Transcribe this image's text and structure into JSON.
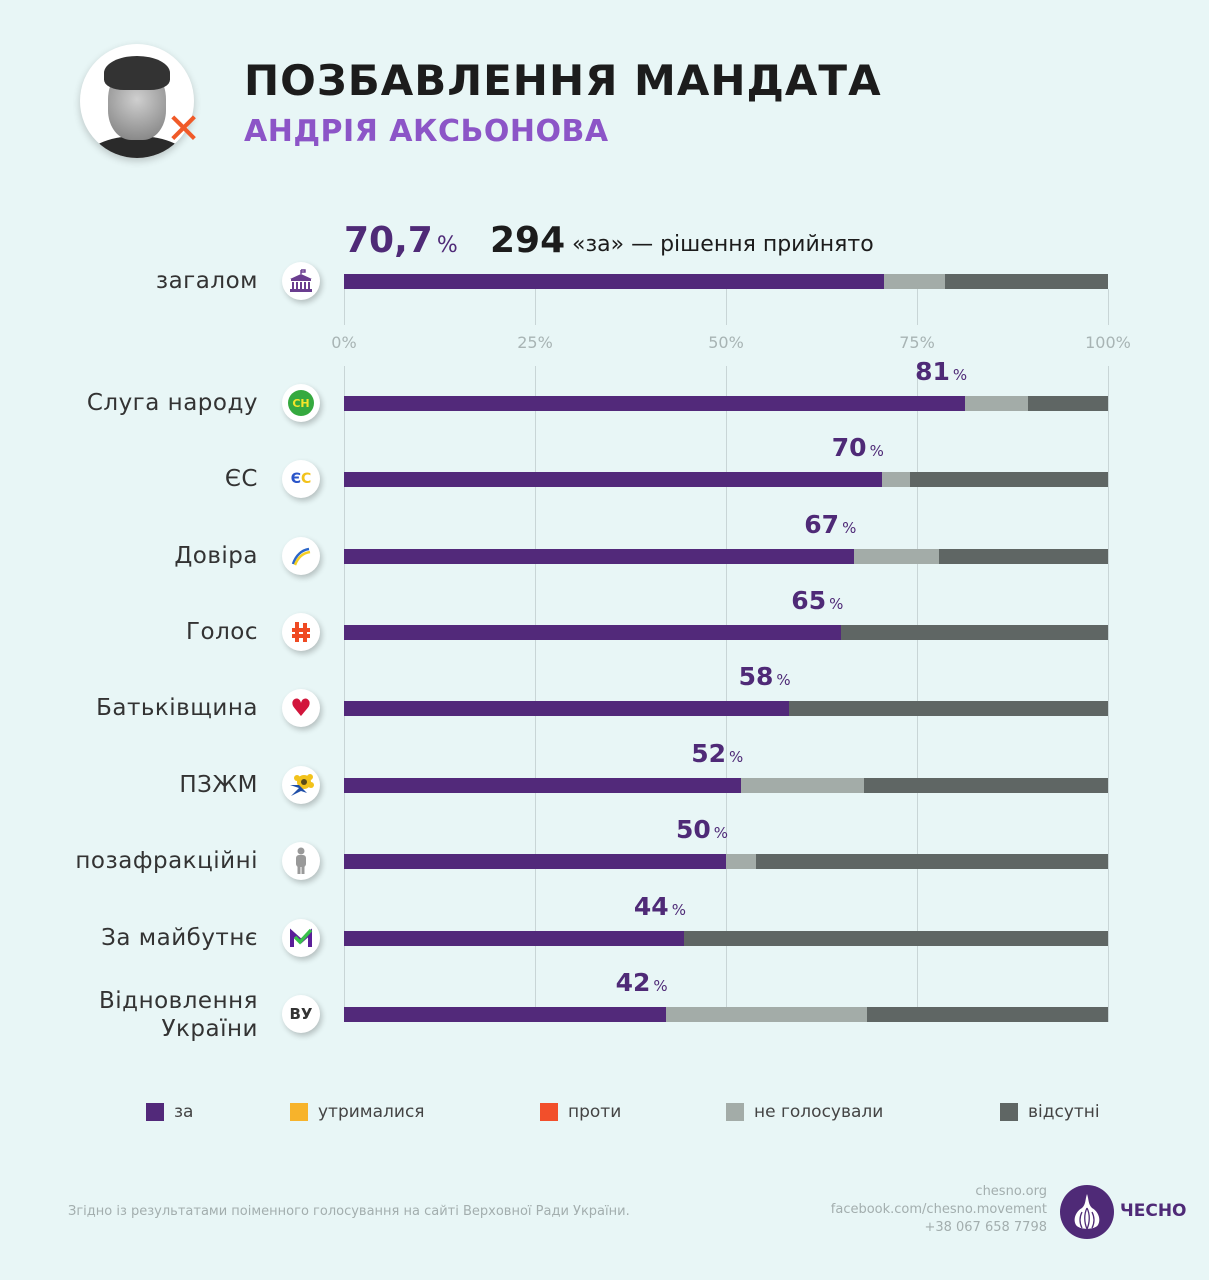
{
  "header": {
    "title": "ПОЗБАВЛЕННЯ МАНДАТА",
    "subtitle": "АНДРІЯ АКСЬОНОВА",
    "portrait_mark": "✕"
  },
  "summary": {
    "percent": "70,7",
    "percent_unit": "%",
    "count": "294",
    "text": "«за» — рішення прийнято"
  },
  "colors": {
    "za": "#52297a",
    "utrymalysia": "#f7b32b",
    "proty": "#f24f2b",
    "ne_holosuvaly": "#a3aca8",
    "vidsutni": "#5f6664"
  },
  "chart_data": {
    "type": "bar",
    "orientation": "horizontal",
    "stacked": true,
    "title": "ПОЗБАВЛЕННЯ МАНДАТА АНДРІЯ АКСЬОНОВА",
    "xlabel": "",
    "ylabel": "",
    "xlim": [
      0,
      100
    ],
    "x_ticks": [
      "0%",
      "25%",
      "50%",
      "75%",
      "100%"
    ],
    "grid": true,
    "legend_position": "bottom",
    "categories": [
      "загалом",
      "Слуга народу",
      "ЄС",
      "Довіра",
      "Голос",
      "Батьківщина",
      "ПЗЖМ",
      "позафракційні",
      "За майбутнє",
      "Відновлення України"
    ],
    "value_labels": [
      "70,7",
      "81",
      "70",
      "67",
      "65",
      "58",
      "52",
      "50",
      "44",
      "42"
    ],
    "series": [
      {
        "name": "за",
        "key": "za",
        "values": [
          70.7,
          81.3,
          70.4,
          66.8,
          65.1,
          58.2,
          52.0,
          50.0,
          44.5,
          42.1
        ]
      },
      {
        "name": "утрималися",
        "key": "utrymalysia",
        "values": [
          0,
          0,
          0,
          0,
          0,
          0,
          0,
          0,
          0,
          0
        ]
      },
      {
        "name": "проти",
        "key": "proty",
        "values": [
          0,
          0,
          0,
          0,
          0,
          0,
          0,
          0,
          0,
          0
        ]
      },
      {
        "name": "не голосували",
        "key": "ne_holosuvaly",
        "values": [
          8.0,
          8.2,
          3.7,
          11.1,
          0,
          0,
          16.1,
          3.9,
          0,
          26.4
        ]
      },
      {
        "name": "відсутні",
        "key": "vidsutni",
        "values": [
          21.3,
          10.5,
          25.9,
          22.1,
          34.9,
          41.8,
          31.9,
          46.1,
          55.5,
          31.5
        ]
      }
    ]
  },
  "rows": [
    {
      "label": "загалом",
      "icon": "parliament-icon"
    },
    {
      "label": "Слуга народу",
      "icon": "sluha-narodu-logo-icon",
      "icon_text": "СН"
    },
    {
      "label": "ЄС",
      "icon": "yes-logo-icon",
      "icon_text": "ЄС"
    },
    {
      "label": "Довіра",
      "icon": "dovira-logo-icon"
    },
    {
      "label": "Голос",
      "icon": "holos-logo-icon"
    },
    {
      "label": "Батьківщина",
      "icon": "heart-icon",
      "icon_text": "♥"
    },
    {
      "label": "ПЗЖМ",
      "icon": "pzzhm-logo-icon"
    },
    {
      "label": "позафракційні",
      "icon": "person-icon"
    },
    {
      "label": "За майбутнє",
      "icon": "za-maibutnie-logo-icon",
      "icon_text": "M"
    },
    {
      "label_line1": "Відновлення",
      "label_line2": "України",
      "icon": "vu-logo-icon",
      "icon_text": "ВУ"
    }
  ],
  "legend": [
    {
      "label": "за",
      "key": "za"
    },
    {
      "label": "утрималися",
      "key": "utrymalysia"
    },
    {
      "label": "проти",
      "key": "proty"
    },
    {
      "label": "не голосували",
      "key": "ne_holosuvaly"
    },
    {
      "label": "відсутні",
      "key": "vidsutni"
    }
  ],
  "footer": {
    "source": "Згідно із результатами поіменного голосування на сайті Верховної Ради України.",
    "website": "chesno.org",
    "facebook": "facebook.com/chesno.movement",
    "phone": "+38 067 658 7798",
    "brand": "ЧЕСНО"
  }
}
